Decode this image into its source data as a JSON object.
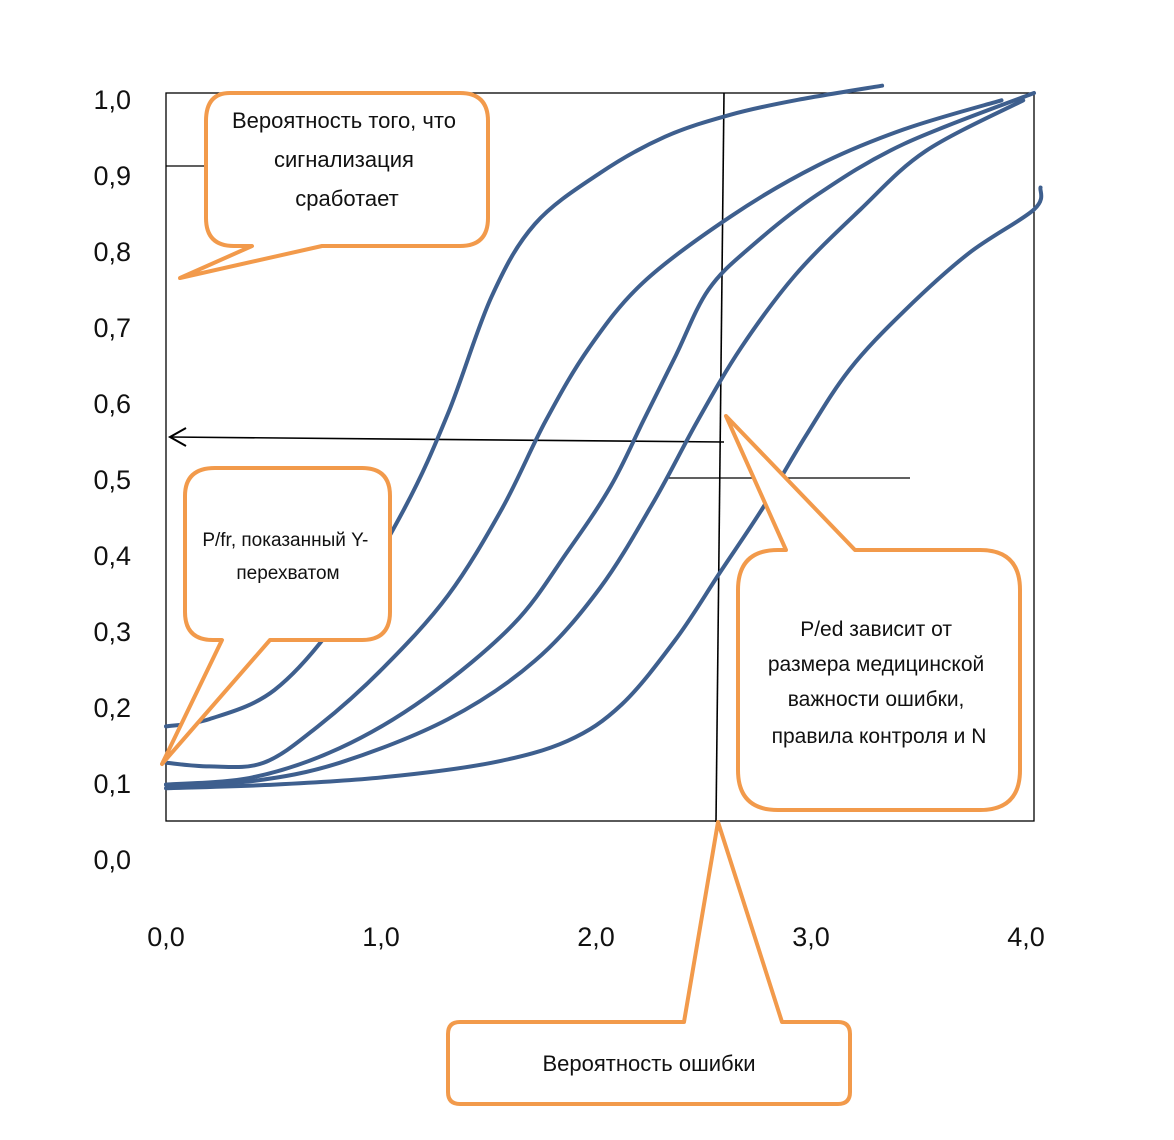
{
  "chart_data": {
    "type": "line",
    "title": "",
    "xlabel": "",
    "ylabel": "",
    "xlim": [
      0,
      4
    ],
    "ylim": [
      0,
      1
    ],
    "x_tick_labels": [
      "0,0",
      "1,0",
      "2,0",
      "3,0",
      "4,0"
    ],
    "y_tick_labels": [
      "0,0",
      "0,1",
      "0,2",
      "0,3",
      "0,4",
      "0,5",
      "0,6",
      "0,7",
      "0,8",
      "0,9",
      "1,0"
    ],
    "grid": false,
    "series": [
      {
        "points": [
          [
            0.0,
            0.13
          ],
          [
            0.2,
            0.14
          ],
          [
            0.5,
            0.18
          ],
          [
            0.8,
            0.28
          ],
          [
            1.1,
            0.43
          ],
          [
            1.3,
            0.56
          ],
          [
            1.5,
            0.72
          ],
          [
            1.7,
            0.82
          ],
          [
            2.0,
            0.89
          ],
          [
            2.3,
            0.94
          ],
          [
            2.6,
            0.97
          ],
          [
            2.9,
            0.99
          ],
          [
            3.3,
            1.01
          ]
        ]
      },
      {
        "points": [
          [
            0.0,
            0.08
          ],
          [
            0.2,
            0.075
          ],
          [
            0.45,
            0.08
          ],
          [
            0.7,
            0.13
          ],
          [
            1.0,
            0.21
          ],
          [
            1.3,
            0.31
          ],
          [
            1.55,
            0.43
          ],
          [
            1.75,
            0.55
          ],
          [
            1.95,
            0.65
          ],
          [
            2.2,
            0.74
          ],
          [
            2.6,
            0.83
          ],
          [
            3.0,
            0.9
          ],
          [
            3.4,
            0.95
          ],
          [
            3.85,
            0.99
          ]
        ]
      },
      {
        "points": [
          [
            0.0,
            0.05
          ],
          [
            0.4,
            0.06
          ],
          [
            0.8,
            0.1
          ],
          [
            1.2,
            0.17
          ],
          [
            1.6,
            0.27
          ],
          [
            1.85,
            0.37
          ],
          [
            2.05,
            0.46
          ],
          [
            2.2,
            0.55
          ],
          [
            2.35,
            0.64
          ],
          [
            2.5,
            0.73
          ],
          [
            2.7,
            0.79
          ],
          [
            3.0,
            0.86
          ],
          [
            3.4,
            0.93
          ],
          [
            4.0,
            1.0
          ]
        ]
      },
      {
        "points": [
          [
            0.0,
            0.05
          ],
          [
            0.4,
            0.055
          ],
          [
            0.8,
            0.08
          ],
          [
            1.3,
            0.14
          ],
          [
            1.7,
            0.22
          ],
          [
            2.0,
            0.32
          ],
          [
            2.25,
            0.44
          ],
          [
            2.45,
            0.55
          ],
          [
            2.65,
            0.65
          ],
          [
            2.9,
            0.75
          ],
          [
            3.2,
            0.84
          ],
          [
            3.5,
            0.92
          ],
          [
            3.95,
            0.99
          ]
        ]
      },
      {
        "points": [
          [
            0.0,
            0.045
          ],
          [
            0.5,
            0.05
          ],
          [
            1.0,
            0.06
          ],
          [
            1.5,
            0.08
          ],
          [
            1.85,
            0.11
          ],
          [
            2.1,
            0.16
          ],
          [
            2.35,
            0.25
          ],
          [
            2.55,
            0.34
          ],
          [
            2.75,
            0.43
          ],
          [
            2.95,
            0.53
          ],
          [
            3.15,
            0.62
          ],
          [
            3.4,
            0.7
          ],
          [
            3.7,
            0.78
          ],
          [
            4.0,
            0.84
          ],
          [
            4.03,
            0.87
          ]
        ]
      }
    ],
    "line_color": "#3E5F8E",
    "callout_color": "#F29A4B",
    "callouts": [
      {
        "text": [
          "Вероятность того, что",
          "сигнализация",
          "сработает"
        ]
      },
      {
        "text": [
          "P/fr, показанный Y-",
          "перехватом"
        ]
      },
      {
        "text": [
          "P/ed зависит от",
          "размера медицинской",
          "важности ошибки,",
          "правила контроля и N"
        ]
      },
      {
        "text": [
          "Вероятность ошибки"
        ]
      }
    ]
  }
}
